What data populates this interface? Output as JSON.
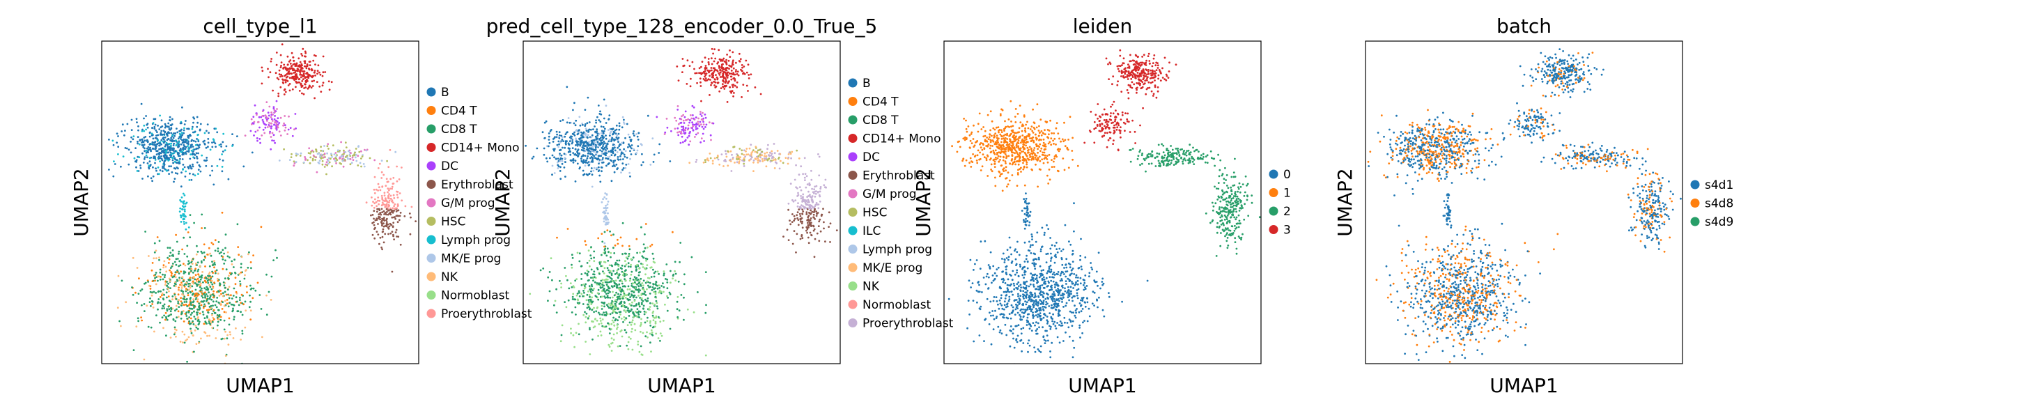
{
  "chart_data": [
    {
      "type": "scatter",
      "title": "cell_type_l1",
      "xlabel": "UMAP1",
      "ylabel": "UMAP2",
      "grid": false,
      "legend_position": "right",
      "legend": [
        {
          "label": "B",
          "color": "#1f77b4"
        },
        {
          "label": "CD4 T",
          "color": "#ff7f0e"
        },
        {
          "label": "CD8 T",
          "color": "#279e68"
        },
        {
          "label": "CD14+ Mono",
          "color": "#d62728"
        },
        {
          "label": "DC",
          "color": "#aa40fc"
        },
        {
          "label": "Erythroblast",
          "color": "#8c564b"
        },
        {
          "label": "G/M prog",
          "color": "#e377c2"
        },
        {
          "label": "HSC",
          "color": "#b5bd61"
        },
        {
          "label": "Lymph prog",
          "color": "#17becf"
        },
        {
          "label": "MK/E prog",
          "color": "#aec7e8"
        },
        {
          "label": "NK",
          "color": "#ffbb78"
        },
        {
          "label": "Normoblast",
          "color": "#98df8a"
        },
        {
          "label": "Proerythroblast",
          "color": "#ff9896"
        }
      ]
    },
    {
      "type": "scatter",
      "title": "pred_cell_type_128_encoder_0.0_True_5",
      "xlabel": "UMAP1",
      "ylabel": "UMAP2",
      "grid": false,
      "legend_position": "right",
      "legend": [
        {
          "label": "B",
          "color": "#1f77b4"
        },
        {
          "label": "CD4 T",
          "color": "#ff7f0e"
        },
        {
          "label": "CD8 T",
          "color": "#279e68"
        },
        {
          "label": "CD14+ Mono",
          "color": "#d62728"
        },
        {
          "label": "DC",
          "color": "#aa40fc"
        },
        {
          "label": "Erythroblast",
          "color": "#8c564b"
        },
        {
          "label": "G/M prog",
          "color": "#e377c2"
        },
        {
          "label": "HSC",
          "color": "#b5bd61"
        },
        {
          "label": "ILC",
          "color": "#17becf"
        },
        {
          "label": "Lymph prog",
          "color": "#aec7e8"
        },
        {
          "label": "MK/E prog",
          "color": "#ffbb78"
        },
        {
          "label": "NK",
          "color": "#98df8a"
        },
        {
          "label": "Normoblast",
          "color": "#ff9896"
        },
        {
          "label": "Proerythroblast",
          "color": "#c5b0d5"
        }
      ]
    },
    {
      "type": "scatter",
      "title": "leiden",
      "xlabel": "UMAP1",
      "ylabel": "UMAP2",
      "grid": false,
      "legend_position": "right",
      "legend": [
        {
          "label": "0",
          "color": "#1f77b4"
        },
        {
          "label": "1",
          "color": "#ff7f0e"
        },
        {
          "label": "2",
          "color": "#279e68"
        },
        {
          "label": "3",
          "color": "#d62728"
        }
      ]
    },
    {
      "type": "scatter",
      "title": "batch",
      "xlabel": "UMAP1",
      "ylabel": "UMAP2",
      "grid": false,
      "legend_position": "right",
      "legend": [
        {
          "label": "s4d1",
          "color": "#1f77b4"
        },
        {
          "label": "s4d8",
          "color": "#ff7f0e"
        },
        {
          "label": "s4d9",
          "color": "#279e68"
        }
      ]
    }
  ]
}
